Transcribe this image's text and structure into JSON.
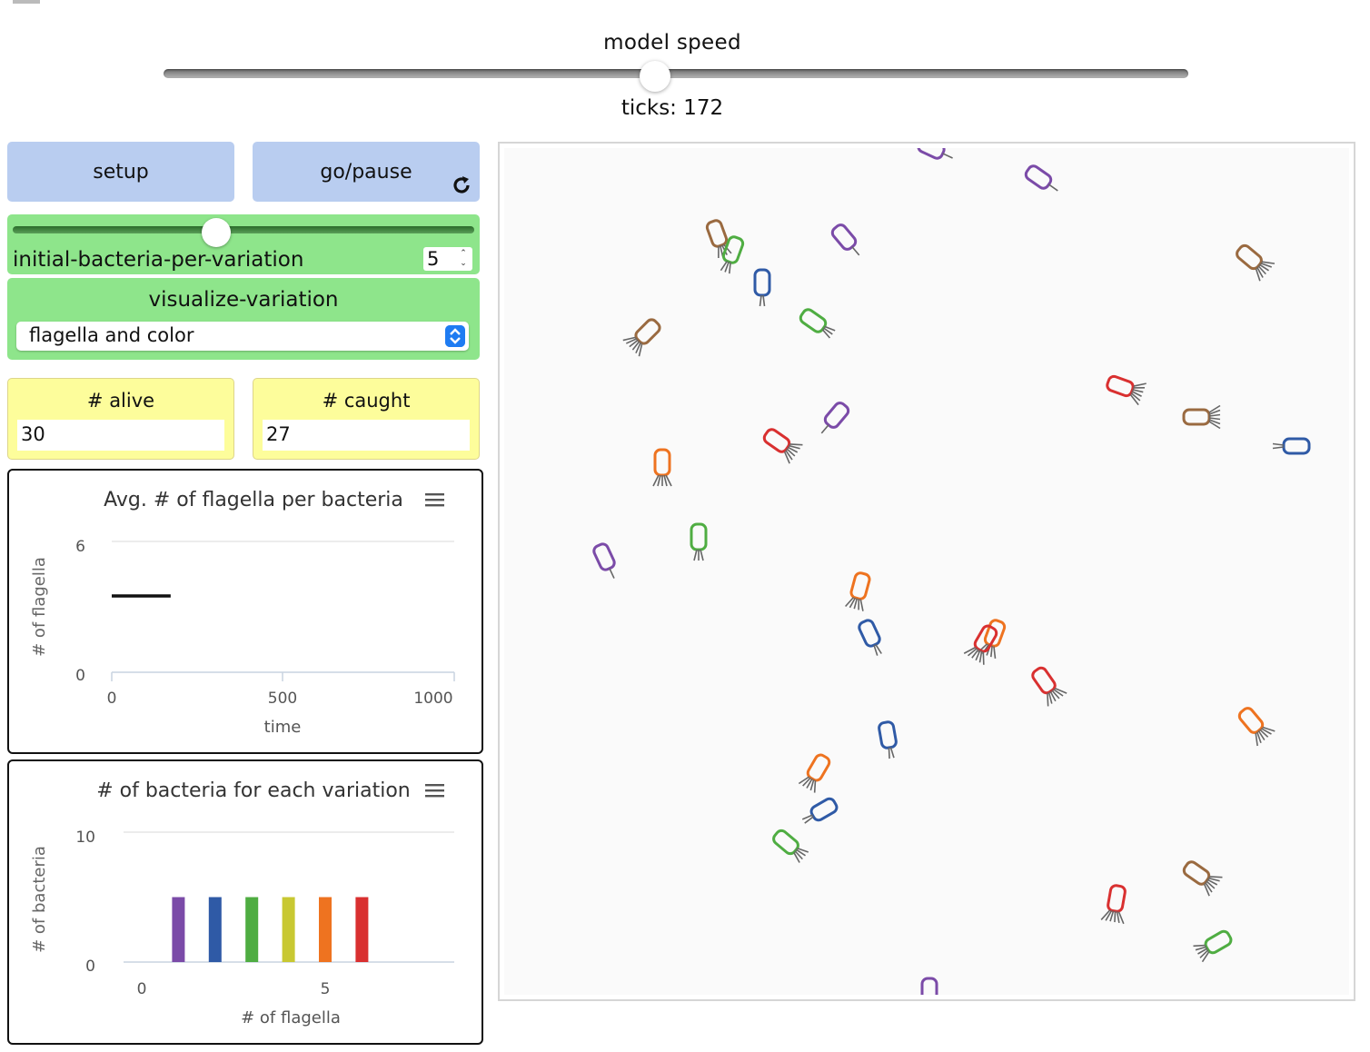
{
  "speed": {
    "label": "model speed",
    "value_fraction": 0.48,
    "ticks_text": "ticks: 172"
  },
  "buttons": {
    "setup": "setup",
    "go": "go/pause"
  },
  "slider": {
    "label": "initial-bacteria-per-variation",
    "value": "5",
    "fraction": 0.44
  },
  "chooser": {
    "label": "visualize-variation",
    "selected": "flagella and color"
  },
  "monitors": {
    "alive": {
      "label": "# alive",
      "value": "30"
    },
    "caught": {
      "label": "# caught",
      "value": "27"
    }
  },
  "plots": {
    "flagella": {
      "title": "Avg. # of flagella per bacteria",
      "ylabel": "# of flagella",
      "xlabel": "time",
      "yticks": [
        "6",
        "0"
      ],
      "xticks": [
        "0",
        "500",
        "1000"
      ]
    },
    "variation": {
      "title": "# of bacteria for each variation",
      "ylabel": "# of bacteria",
      "xlabel": "# of flagella",
      "yticks": [
        "10",
        "0"
      ],
      "xticks": [
        "0",
        "5"
      ]
    }
  },
  "chart_data": [
    {
      "type": "line",
      "title": "Avg. # of flagella per bacteria",
      "xlabel": "time",
      "ylabel": "# of flagella",
      "xlim": [
        0,
        1000
      ],
      "ylim": [
        0,
        6
      ],
      "series": [
        {
          "x": [
            0,
            172
          ],
          "y": [
            3.5,
            3.5
          ]
        }
      ]
    },
    {
      "type": "bar",
      "title": "# of bacteria for each variation",
      "xlabel": "# of flagella",
      "ylabel": "# of bacteria",
      "xlim": [
        0,
        9
      ],
      "ylim": [
        0,
        10
      ],
      "categories": [
        1,
        2,
        3,
        4,
        5,
        6
      ],
      "values": [
        5,
        5,
        5,
        5,
        5,
        5
      ],
      "colors": [
        "#7b4ba8",
        "#2f5aa6",
        "#4fad42",
        "#c8c832",
        "#ee7320",
        "#d93030"
      ]
    }
  ],
  "colors": {
    "purple": "#7b4ba8",
    "blue": "#2f5aa6",
    "green": "#4fad42",
    "yellow": "#c8c832",
    "orange": "#ee7320",
    "red": "#d93030",
    "brown": "#9a6a40"
  }
}
